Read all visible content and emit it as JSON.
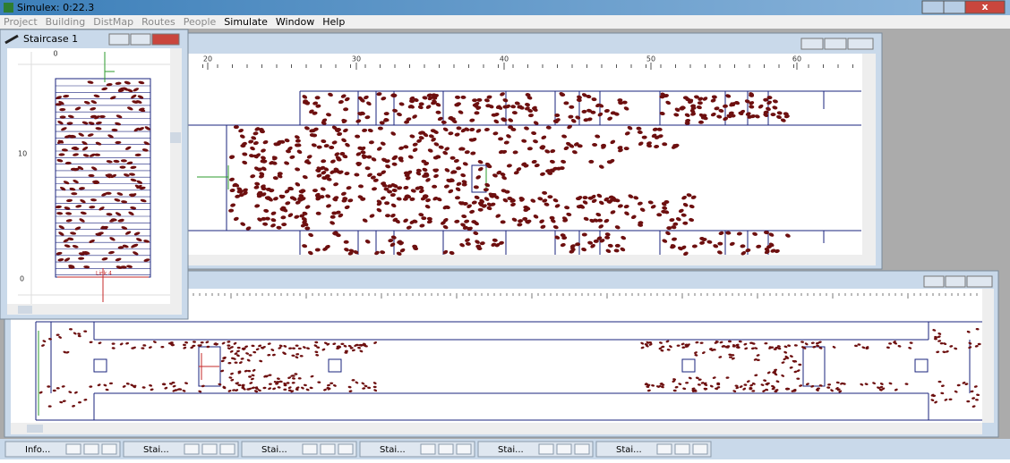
{
  "title_bar": {
    "title": "Simulex: 0:22.3"
  },
  "menu": {
    "items": [
      "Project",
      "Building",
      "DistMap",
      "Routes",
      "People",
      "Simulate",
      "Window",
      "Help"
    ]
  },
  "staircase_window": {
    "title": "Staircase 1",
    "ruler_x": [
      "0"
    ],
    "ruler_y": [
      "10",
      "0"
    ],
    "label": "Link 4"
  },
  "plan_window": {
    "ruler_x": [
      "20",
      "30",
      "40",
      "50",
      "60"
    ]
  },
  "taskbar": {
    "items": [
      "Info...",
      "Stai...",
      "Stai...",
      "Stai...",
      "Stai...",
      "Stai..."
    ]
  }
}
